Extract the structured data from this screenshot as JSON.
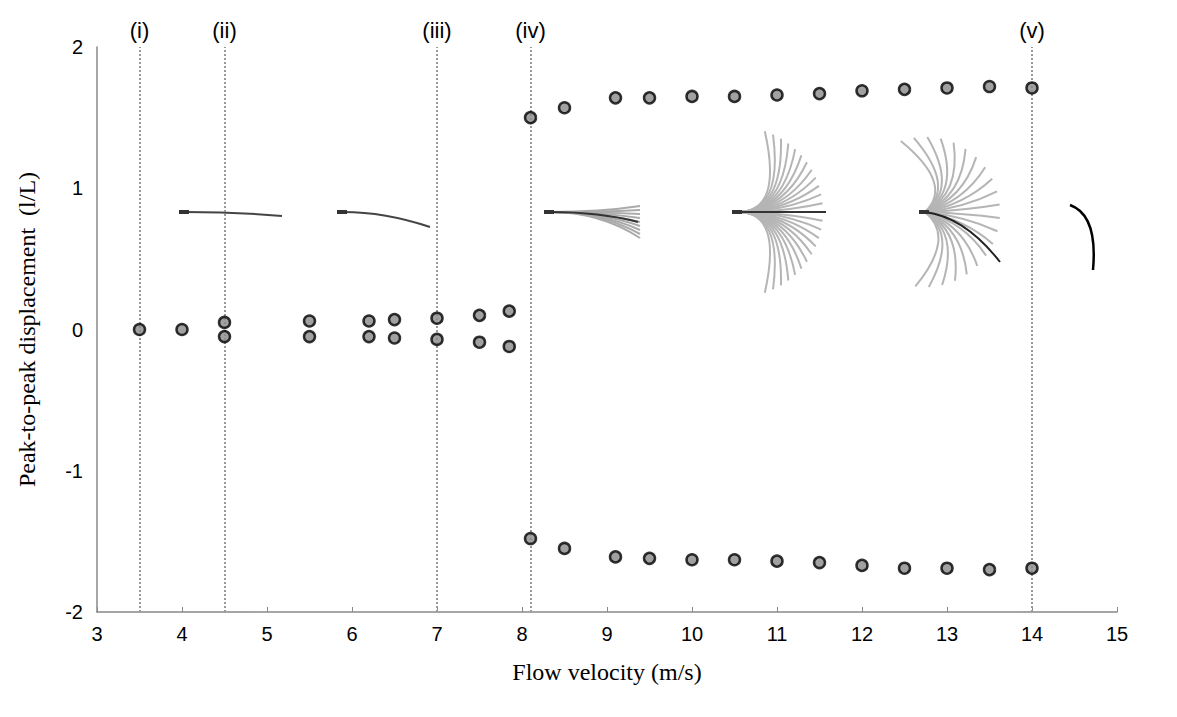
{
  "chart_data": {
    "type": "scatter",
    "x_label": "Flow velocity (m/s)",
    "y_label": "Peak-to-peak displacement  (l/L)",
    "x": [
      3.5,
      4.0,
      4.5,
      4.5,
      5.5,
      5.5,
      6.2,
      6.2,
      6.5,
      6.5,
      7.0,
      7.0,
      7.5,
      7.5,
      7.85,
      7.85,
      8.1,
      8.1,
      8.5,
      8.5,
      9.1,
      9.1,
      9.5,
      9.5,
      10.0,
      10.0,
      10.5,
      10.5,
      11.0,
      11.0,
      11.5,
      11.5,
      12.0,
      12.0,
      12.5,
      12.5,
      13.0,
      13.0,
      13.5,
      13.5,
      14.0,
      14.0
    ],
    "values": [
      0,
      0,
      0.05,
      -0.05,
      0.06,
      -0.05,
      0.06,
      -0.05,
      0.07,
      -0.06,
      0.08,
      -0.07,
      0.1,
      -0.09,
      0.13,
      -0.12,
      1.5,
      -1.48,
      1.57,
      -1.55,
      1.64,
      -1.61,
      1.64,
      -1.62,
      1.65,
      -1.63,
      1.65,
      -1.63,
      1.66,
      -1.64,
      1.67,
      -1.65,
      1.69,
      -1.67,
      1.7,
      -1.69,
      1.71,
      -1.69,
      1.72,
      -1.7,
      1.71,
      -1.69
    ],
    "color": "#000000",
    "marker": "circle",
    "annotations": [
      {
        "x": 3.5,
        "label": "(i)"
      },
      {
        "x": 4.5,
        "label": "(ii)"
      },
      {
        "x": 7.0,
        "label": "(iii)"
      },
      {
        "x": 8.1,
        "label": "(iv)"
      },
      {
        "x": 14.0,
        "label": "(v)"
      }
    ],
    "xlim": [
      3,
      15
    ],
    "xticks": [
      3,
      4,
      5,
      6,
      7,
      8,
      9,
      10,
      11,
      12,
      13,
      14,
      15
    ],
    "ylim": [
      -2,
      2
    ],
    "yticks": [
      -2,
      -1,
      0,
      1,
      2
    ],
    "grid": false
  }
}
